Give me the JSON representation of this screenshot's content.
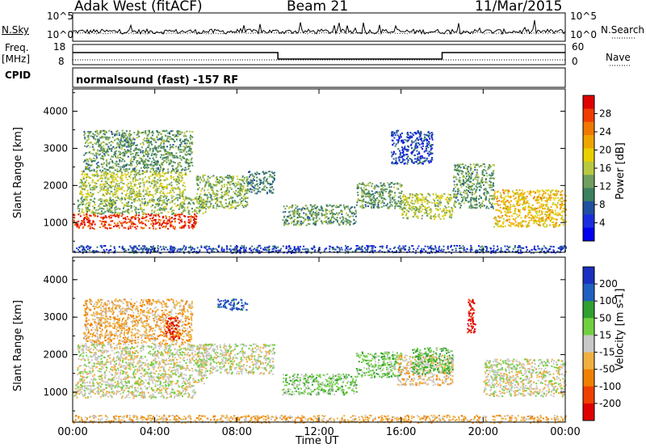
{
  "header": {
    "radar": "Adak West (fitACF)",
    "beam": "Beam 21",
    "date": "11/Mar/2015"
  },
  "top_panel": {
    "nsky_label": "N.Sky",
    "nsearch_label": "N.Search",
    "freq_label_1": "Freq.",
    "freq_label_2": "[MHz]",
    "nave_label": "Nave",
    "cpid_label": "CPID",
    "cpid_value": "normalsound (fast) -157 RF",
    "noise_ticks": [
      "10^5",
      "10^0"
    ],
    "freq_ticks": [
      "18",
      "8"
    ],
    "nave_ticks": [
      "60",
      "0"
    ]
  },
  "axes": {
    "xlabel": "Time UT",
    "ylabel_range": "Slant Range [km]"
  },
  "colorbars": {
    "power": {
      "label": "Power [dB]",
      "ticks": [
        "28",
        "24",
        "20",
        "16",
        "12",
        "8",
        "4"
      ],
      "colors": [
        "#e00000",
        "#f03c00",
        "#f07800",
        "#f0a400",
        "#e8d000",
        "#b8c840",
        "#70a060",
        "#3c8060",
        "#2050a0",
        "#1a2ee0",
        "#0000f0"
      ]
    },
    "velocity": {
      "label": "Velocity [m s-1]",
      "ticks": [
        "200",
        "100",
        "50",
        "15",
        "-15",
        "-50",
        "-100",
        "-200"
      ],
      "colors": [
        "#1a30c0",
        "#2060c0",
        "#30a030",
        "#70d040",
        "#c8c8c8",
        "#f0b040",
        "#f08000",
        "#f04000",
        "#e00000"
      ]
    }
  },
  "chart_data": [
    {
      "type": "heatmap",
      "title": "Power",
      "xlabel": "Time UT",
      "ylabel": "Slant Range [km]",
      "x_ticks": [
        "00:00",
        "04:00",
        "08:00",
        "12:00",
        "16:00",
        "20:00",
        "00:00"
      ],
      "xlim": [
        0,
        24
      ],
      "y_ticks": [
        1000,
        2000,
        3000,
        4000
      ],
      "ylim": [
        200,
        4600
      ],
      "colorbar": "Power [dB]",
      "clim": [
        0,
        32
      ],
      "blobs": [
        {
          "t": [
            0.0,
            6.0
          ],
          "r": [
            850,
            1250
          ],
          "value": 28
        },
        {
          "t": [
            0.2,
            6.5
          ],
          "r": [
            1250,
            1700
          ],
          "value": 14
        },
        {
          "t": [
            0.3,
            5.5
          ],
          "r": [
            1700,
            2400
          ],
          "value": 16
        },
        {
          "t": [
            0.5,
            5.8
          ],
          "r": [
            2400,
            3500
          ],
          "value": 12
        },
        {
          "t": [
            6.0,
            8.5
          ],
          "r": [
            1400,
            2300
          ],
          "value": 14
        },
        {
          "t": [
            8.5,
            9.8
          ],
          "r": [
            1800,
            2400
          ],
          "value": 10
        },
        {
          "t": [
            10.2,
            13.8
          ],
          "r": [
            950,
            1500
          ],
          "value": 12
        },
        {
          "t": [
            13.8,
            16.0
          ],
          "r": [
            1400,
            2100
          ],
          "value": 12
        },
        {
          "t": [
            16.0,
            18.5
          ],
          "r": [
            1100,
            1800
          ],
          "value": 16
        },
        {
          "t": [
            18.5,
            20.5
          ],
          "r": [
            1400,
            2600
          ],
          "value": 12
        },
        {
          "t": [
            20.5,
            24.0
          ],
          "r": [
            900,
            1900
          ],
          "value": 20
        },
        {
          "t": [
            15.5,
            17.5
          ],
          "r": [
            2600,
            3500
          ],
          "value": 6
        },
        {
          "t": [
            0.0,
            24.0
          ],
          "r": [
            200,
            400
          ],
          "value": 6
        }
      ]
    },
    {
      "type": "heatmap",
      "title": "Velocity",
      "xlabel": "Time UT",
      "ylabel": "Slant Range [km]",
      "x_ticks": [
        "00:00",
        "04:00",
        "08:00",
        "12:00",
        "16:00",
        "20:00",
        "00:00"
      ],
      "xlim": [
        0,
        24
      ],
      "y_ticks": [
        1000,
        2000,
        3000,
        4000
      ],
      "ylim": [
        200,
        4600
      ],
      "colorbar": "Velocity [m s-1]",
      "clim": [
        -200,
        200
      ],
      "blobs": [
        {
          "t": [
            0.0,
            6.0
          ],
          "r": [
            850,
            1250
          ],
          "value": 0
        },
        {
          "t": [
            0.2,
            6.5
          ],
          "r": [
            1250,
            2300
          ],
          "value": 0
        },
        {
          "t": [
            0.5,
            5.8
          ],
          "r": [
            2300,
            3500
          ],
          "value": -50
        },
        {
          "t": [
            4.5,
            5.2
          ],
          "r": [
            2400,
            3000
          ],
          "value": -150
        },
        {
          "t": [
            7.0,
            8.5
          ],
          "r": [
            3200,
            3500
          ],
          "value": 150
        },
        {
          "t": [
            6.0,
            9.8
          ],
          "r": [
            1500,
            2300
          ],
          "value": 0
        },
        {
          "t": [
            10.2,
            13.8
          ],
          "r": [
            950,
            1500
          ],
          "value": 40
        },
        {
          "t": [
            13.8,
            16.0
          ],
          "r": [
            1400,
            2100
          ],
          "value": 50
        },
        {
          "t": [
            15.8,
            18.5
          ],
          "r": [
            1200,
            2000
          ],
          "value": -30
        },
        {
          "t": [
            16.5,
            18.5
          ],
          "r": [
            1500,
            2200
          ],
          "value": 60
        },
        {
          "t": [
            19.2,
            19.6
          ],
          "r": [
            2600,
            3500
          ],
          "value": -180
        },
        {
          "t": [
            20.0,
            24.0
          ],
          "r": [
            900,
            1900
          ],
          "value": 0
        },
        {
          "t": [
            0.0,
            24.0
          ],
          "r": [
            200,
            400
          ],
          "value": -50
        }
      ]
    }
  ]
}
